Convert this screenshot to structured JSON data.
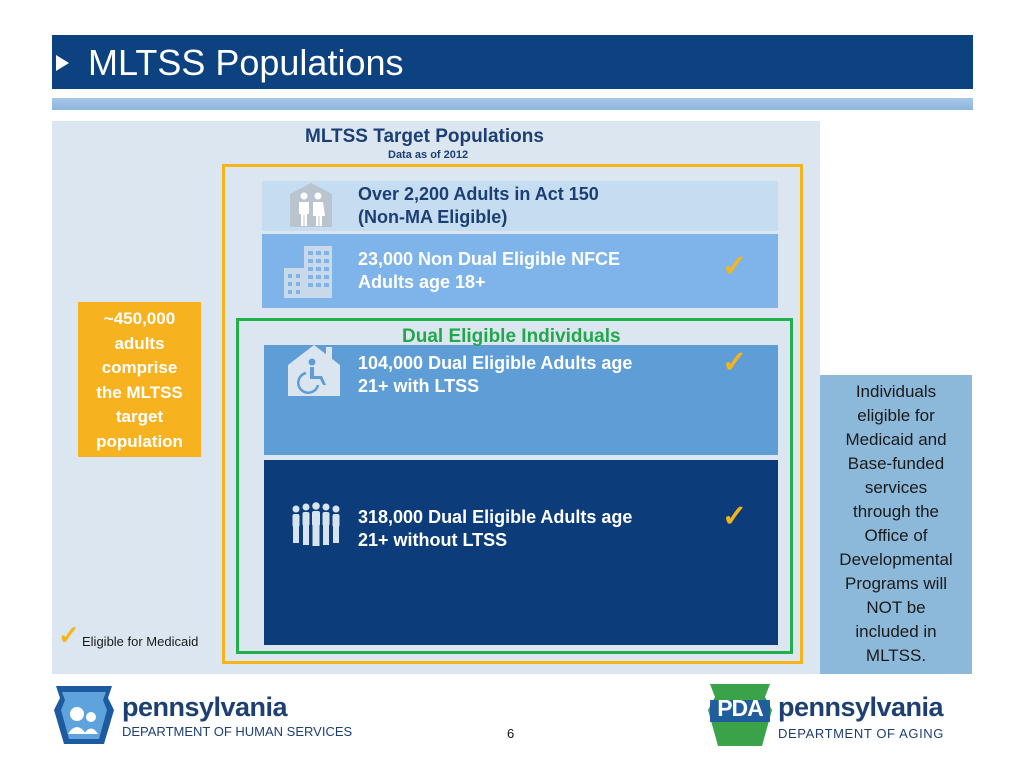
{
  "slide": {
    "title": "MLTSS Populations",
    "page_number": "6"
  },
  "panel": {
    "title": "MLTSS Target Populations",
    "subtitle": "Data as of 2012",
    "dual_label": "Dual Eligible Individuals",
    "boxes": [
      {
        "line1": "Over 2,200  Adults in Act 150",
        "line2": "(Non-MA Eligible)",
        "icon": "couple-icon",
        "eligible": false
      },
      {
        "line1": "23,000 Non Dual Eligible NFCE",
        "line2": "Adults age 18+",
        "icon": "building-icon",
        "eligible": true
      },
      {
        "line1": "104,000 Dual Eligible Adults age",
        "line2": "21+ with LTSS",
        "icon": "wheelchair-house-icon",
        "eligible": true
      },
      {
        "line1": "318,000 Dual Eligible Adults age",
        "line2": "21+ without LTSS",
        "icon": "group-people-icon",
        "eligible": true
      }
    ],
    "target_callout": [
      "~450,000",
      "adults",
      "comprise",
      "the MLTSS",
      "target",
      "population"
    ],
    "legend": "Eligible for Medicaid",
    "check_symbol": "✓"
  },
  "side_note": [
    "Individuals",
    "eligible for",
    "Medicaid and",
    "Base-funded",
    "services",
    "through the",
    "Office of",
    "Developmental",
    "Programs will",
    "NOT be",
    "included in",
    "MLTSS."
  ],
  "footer": {
    "left_logo": {
      "name": "pennsylvania",
      "department": "DEPARTMENT OF HUMAN SERVICES"
    },
    "right_logo": {
      "badge": "PDA",
      "name": "pennsylvania",
      "department": "DEPARTMENT OF AGING"
    }
  },
  "colors": {
    "title_bar": "#0c4280",
    "accent_yellow": "#f5b519",
    "accent_green": "#22b04a",
    "dark_navy": "#0c3d7a"
  }
}
